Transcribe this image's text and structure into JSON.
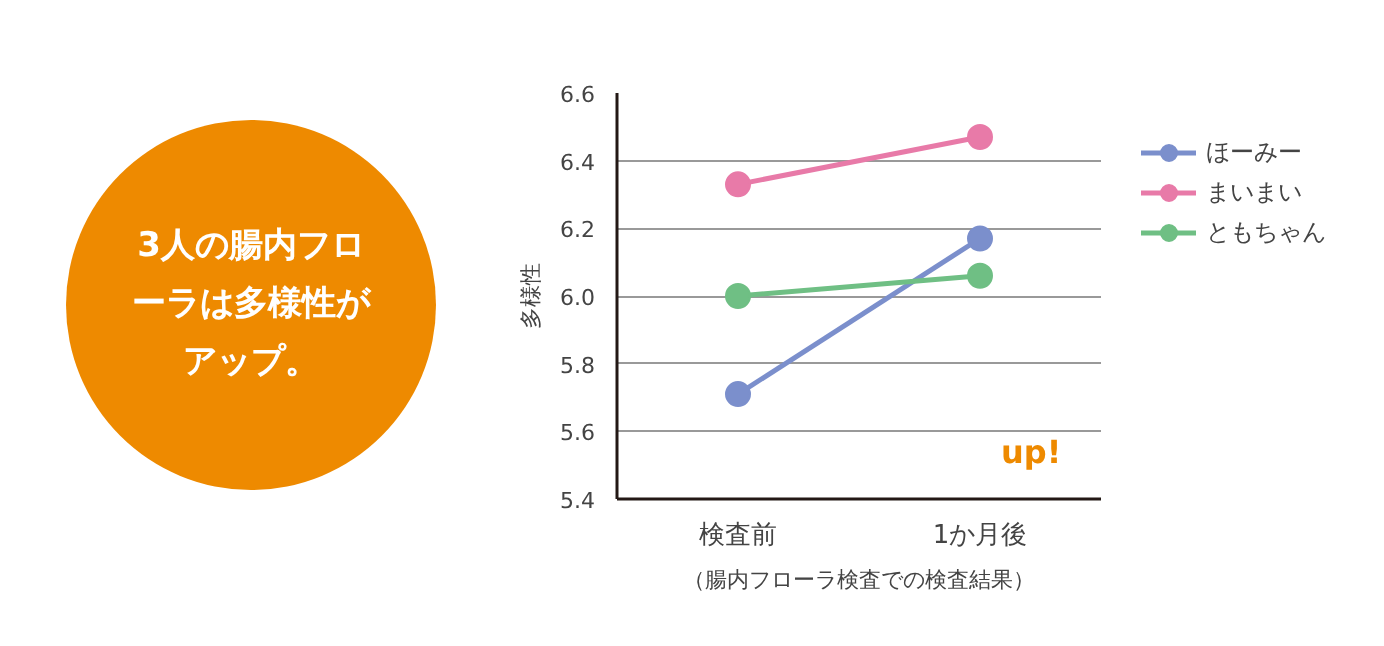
{
  "chart_data": {
    "type": "line",
    "categories": [
      "検査前",
      "1か月後"
    ],
    "ylabel": "多様性",
    "xlabel": "（腸内フローラ検査での検査結果）",
    "series": [
      {
        "name": "ほーみー",
        "color": "#7b8fcc",
        "values": [
          5.71,
          6.17
        ]
      },
      {
        "name": "まいまい",
        "color": "#e87aa8",
        "values": [
          6.33,
          6.47
        ]
      },
      {
        "name": "ともちゃん",
        "color": "#6fbf84",
        "values": [
          6.0,
          6.06
        ]
      }
    ],
    "ylim": [
      5.4,
      6.6
    ],
    "yticks": [
      5.4,
      5.6,
      5.8,
      {
        "value": 6.0,
        "label": "6.0"
      },
      6.2,
      6.4,
      6.6
    ],
    "grid": "y",
    "legend": "right",
    "marker": "circle",
    "line_style": "solid",
    "annotations": [
      "3人の腸内フローラは多様性がアップ。",
      "up!"
    ]
  }
}
